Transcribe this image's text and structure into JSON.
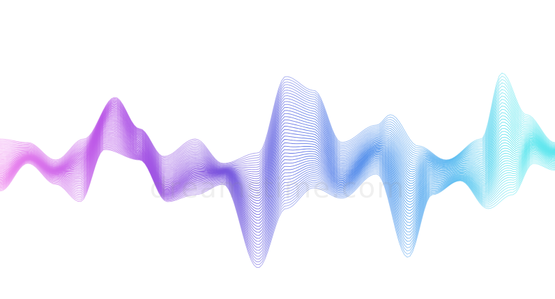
{
  "image": {
    "description_visible_only": true,
    "background": "#ffffff",
    "colors": {
      "pink": "#ee88ee",
      "magenta": "#b44fe6",
      "violet": "#7a55dd",
      "blue": "#4a7fe8",
      "sky": "#4fb0f0",
      "cyan": "#5fe6ee"
    },
    "watermark": {
      "text": "dreamstime.com"
    },
    "wave": {
      "line_count": 44,
      "color_stops": [
        "pink",
        "magenta",
        "violet",
        "blue",
        "sky",
        "cyan"
      ]
    }
  }
}
